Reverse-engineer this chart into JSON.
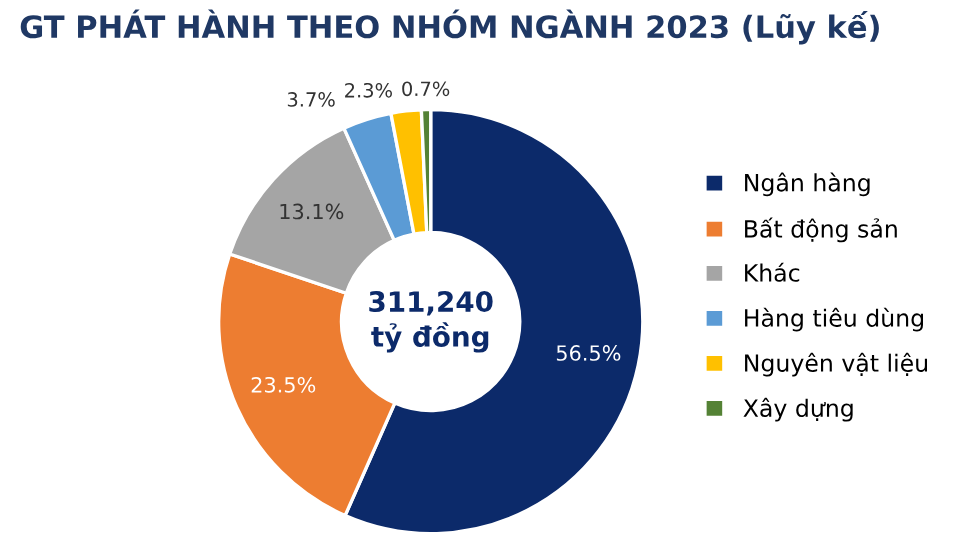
{
  "chart_data": {
    "type": "donut",
    "title": "GT PHÁT HÀNH THEO NHÓM NGÀNH 2023 (Lũy kế)",
    "categories": [
      "Ngân hàng",
      "Bất động sản",
      "Khác",
      "Hàng tiêu dùng",
      "Nguyên vật liệu",
      "Xây dựng"
    ],
    "values": [
      56.5,
      23.5,
      13.1,
      3.7,
      2.3,
      0.7
    ],
    "colors": [
      "#0c2a6a",
      "#ed7d31",
      "#a5a5a5",
      "#5b9bd5",
      "#ffc000",
      "#548235"
    ],
    "value_labels": [
      "56.5%",
      "23.5%",
      "13.1%",
      "3.7%",
      "2.3%",
      "0.7%"
    ],
    "annotations": [
      "311,240\ntỷ đồng"
    ],
    "legend": "right"
  }
}
